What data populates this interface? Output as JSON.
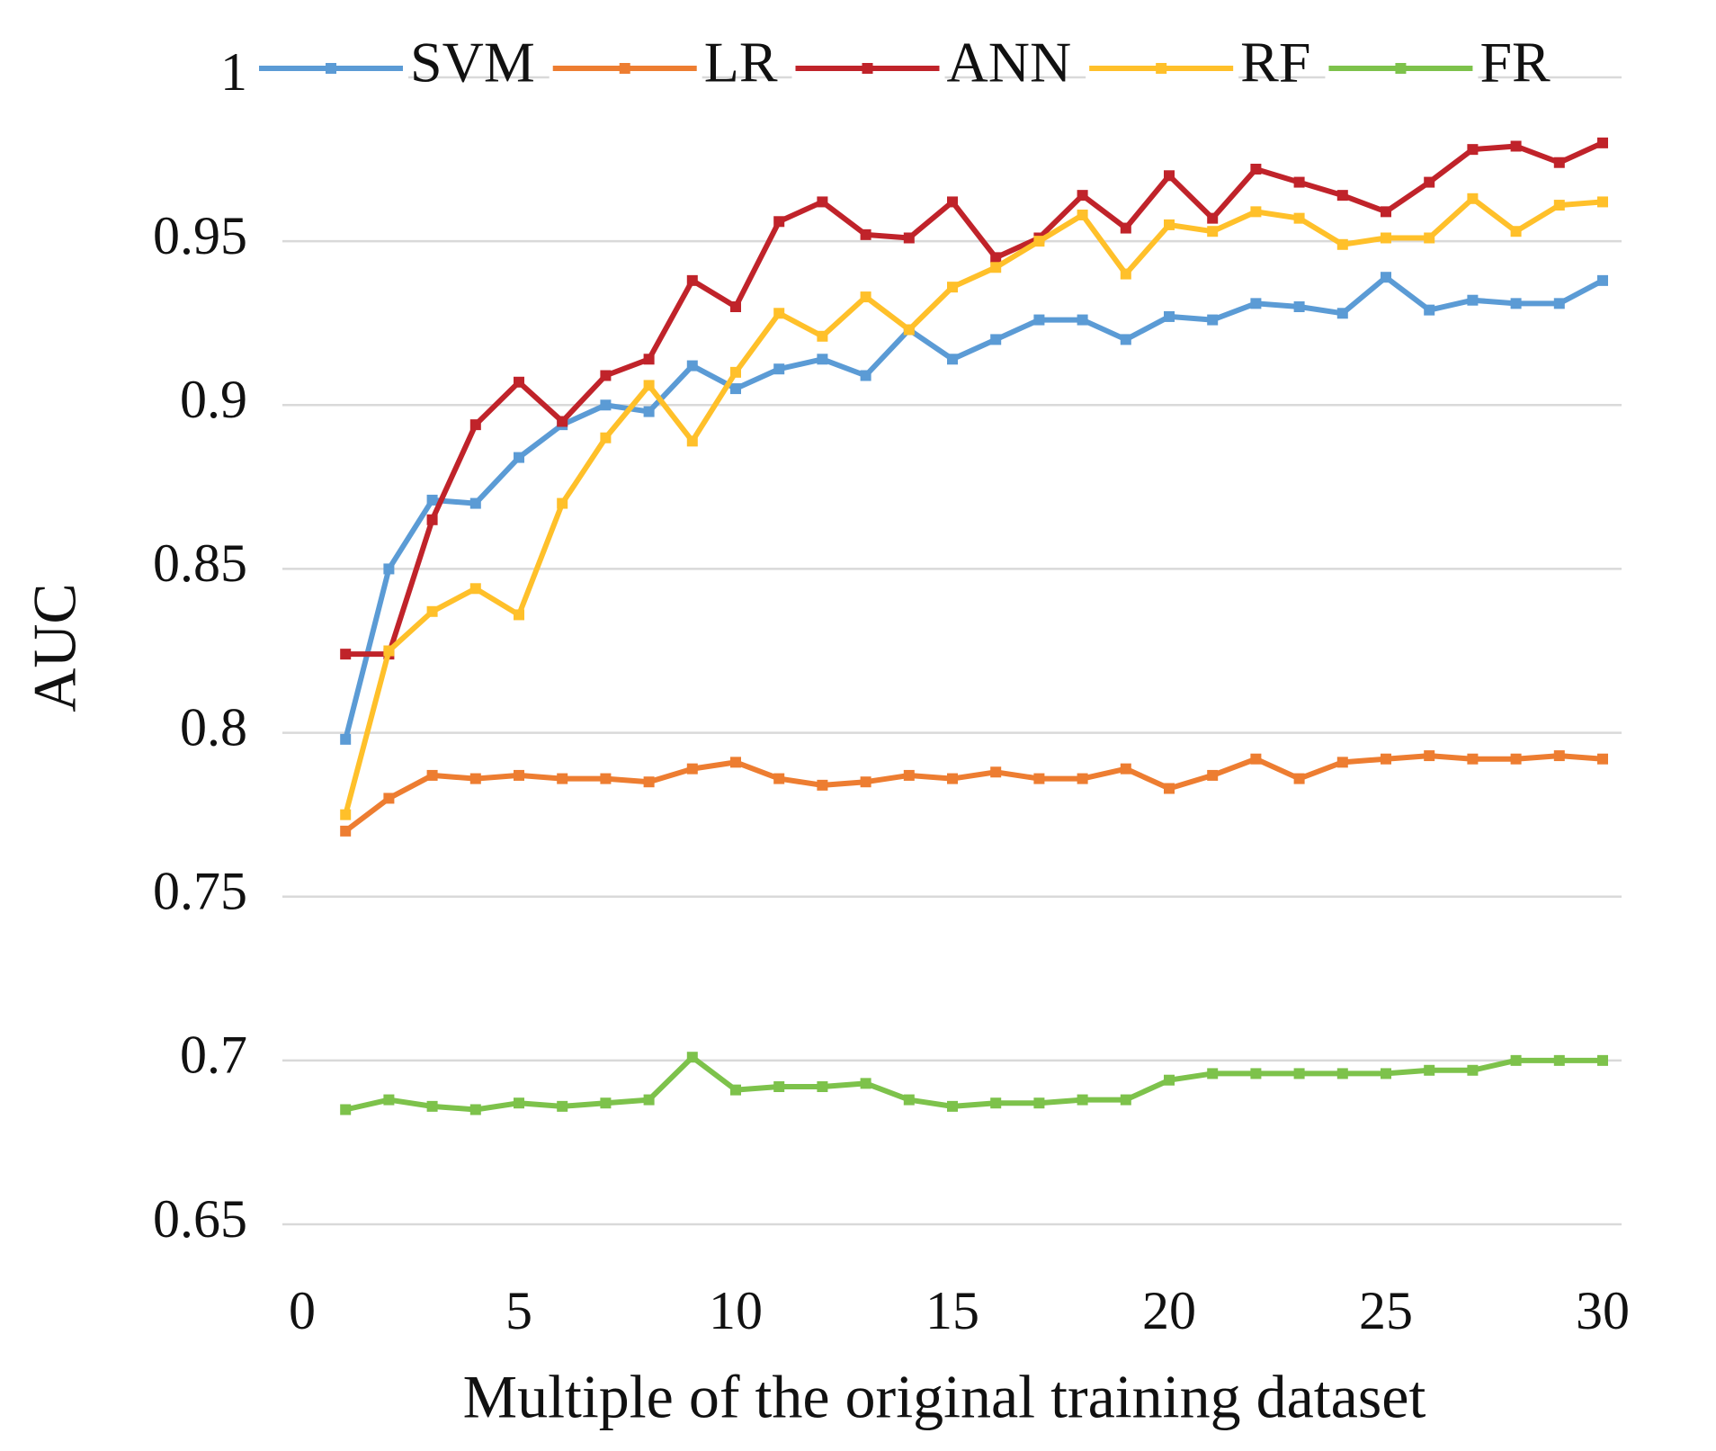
{
  "chart_data": {
    "type": "line",
    "xlabel": "Multiple of the original training dataset",
    "ylabel": "AUC",
    "x": [
      1,
      2,
      3,
      4,
      5,
      6,
      7,
      8,
      9,
      10,
      11,
      12,
      13,
      14,
      15,
      16,
      17,
      18,
      19,
      20,
      21,
      22,
      23,
      24,
      25,
      26,
      27,
      28,
      29,
      30
    ],
    "xlim": [
      0,
      30
    ],
    "xticks": [
      0,
      5,
      10,
      15,
      20,
      25,
      30
    ],
    "ylim": [
      0.65,
      1
    ],
    "yticks": [
      0.65,
      0.7,
      0.75,
      0.8,
      0.85,
      0.9,
      0.95,
      1
    ],
    "grid": true,
    "legend": "top",
    "series": [
      {
        "name": "SVM",
        "color": "#5b9bd5",
        "values": [
          0.798,
          0.85,
          0.871,
          0.87,
          0.884,
          0.894,
          0.9,
          0.898,
          0.912,
          0.905,
          0.911,
          0.914,
          0.909,
          0.923,
          0.914,
          0.92,
          0.926,
          0.926,
          0.92,
          0.927,
          0.926,
          0.931,
          0.93,
          0.928,
          0.939,
          0.929,
          0.932,
          0.931,
          0.931,
          0.938
        ]
      },
      {
        "name": "LR",
        "color": "#ed7d31",
        "values": [
          0.77,
          0.78,
          0.787,
          0.786,
          0.787,
          0.786,
          0.786,
          0.785,
          0.789,
          0.791,
          0.786,
          0.784,
          0.785,
          0.787,
          0.786,
          0.788,
          0.786,
          0.786,
          0.789,
          0.783,
          0.787,
          0.792,
          0.786,
          0.791,
          0.792,
          0.793,
          0.792,
          0.792,
          0.793,
          0.792
        ]
      },
      {
        "name": "ANN",
        "color": "#c0232a",
        "values": [
          0.824,
          0.824,
          0.865,
          0.894,
          0.907,
          0.895,
          0.909,
          0.914,
          0.938,
          0.93,
          0.956,
          0.962,
          0.952,
          0.951,
          0.962,
          0.945,
          0.951,
          0.964,
          0.954,
          0.97,
          0.957,
          0.972,
          0.968,
          0.964,
          0.959,
          0.968,
          0.978,
          0.979,
          0.974,
          0.98
        ]
      },
      {
        "name": "RF",
        "color": "#ffc02a",
        "values": [
          0.775,
          0.825,
          0.837,
          0.844,
          0.836,
          0.87,
          0.89,
          0.906,
          0.889,
          0.91,
          0.928,
          0.921,
          0.933,
          0.923,
          0.936,
          0.942,
          0.95,
          0.958,
          0.94,
          0.955,
          0.953,
          0.959,
          0.957,
          0.949,
          0.951,
          0.951,
          0.963,
          0.953,
          0.961,
          0.962
        ]
      },
      {
        "name": "FR",
        "color": "#7dc24b",
        "values": [
          0.685,
          0.688,
          0.686,
          0.685,
          0.687,
          0.686,
          0.687,
          0.688,
          0.701,
          0.691,
          0.692,
          0.692,
          0.693,
          0.688,
          0.686,
          0.687,
          0.687,
          0.688,
          0.688,
          0.694,
          0.696,
          0.696,
          0.696,
          0.696,
          0.696,
          0.697,
          0.697,
          0.7,
          0.7,
          0.7
        ]
      }
    ]
  }
}
